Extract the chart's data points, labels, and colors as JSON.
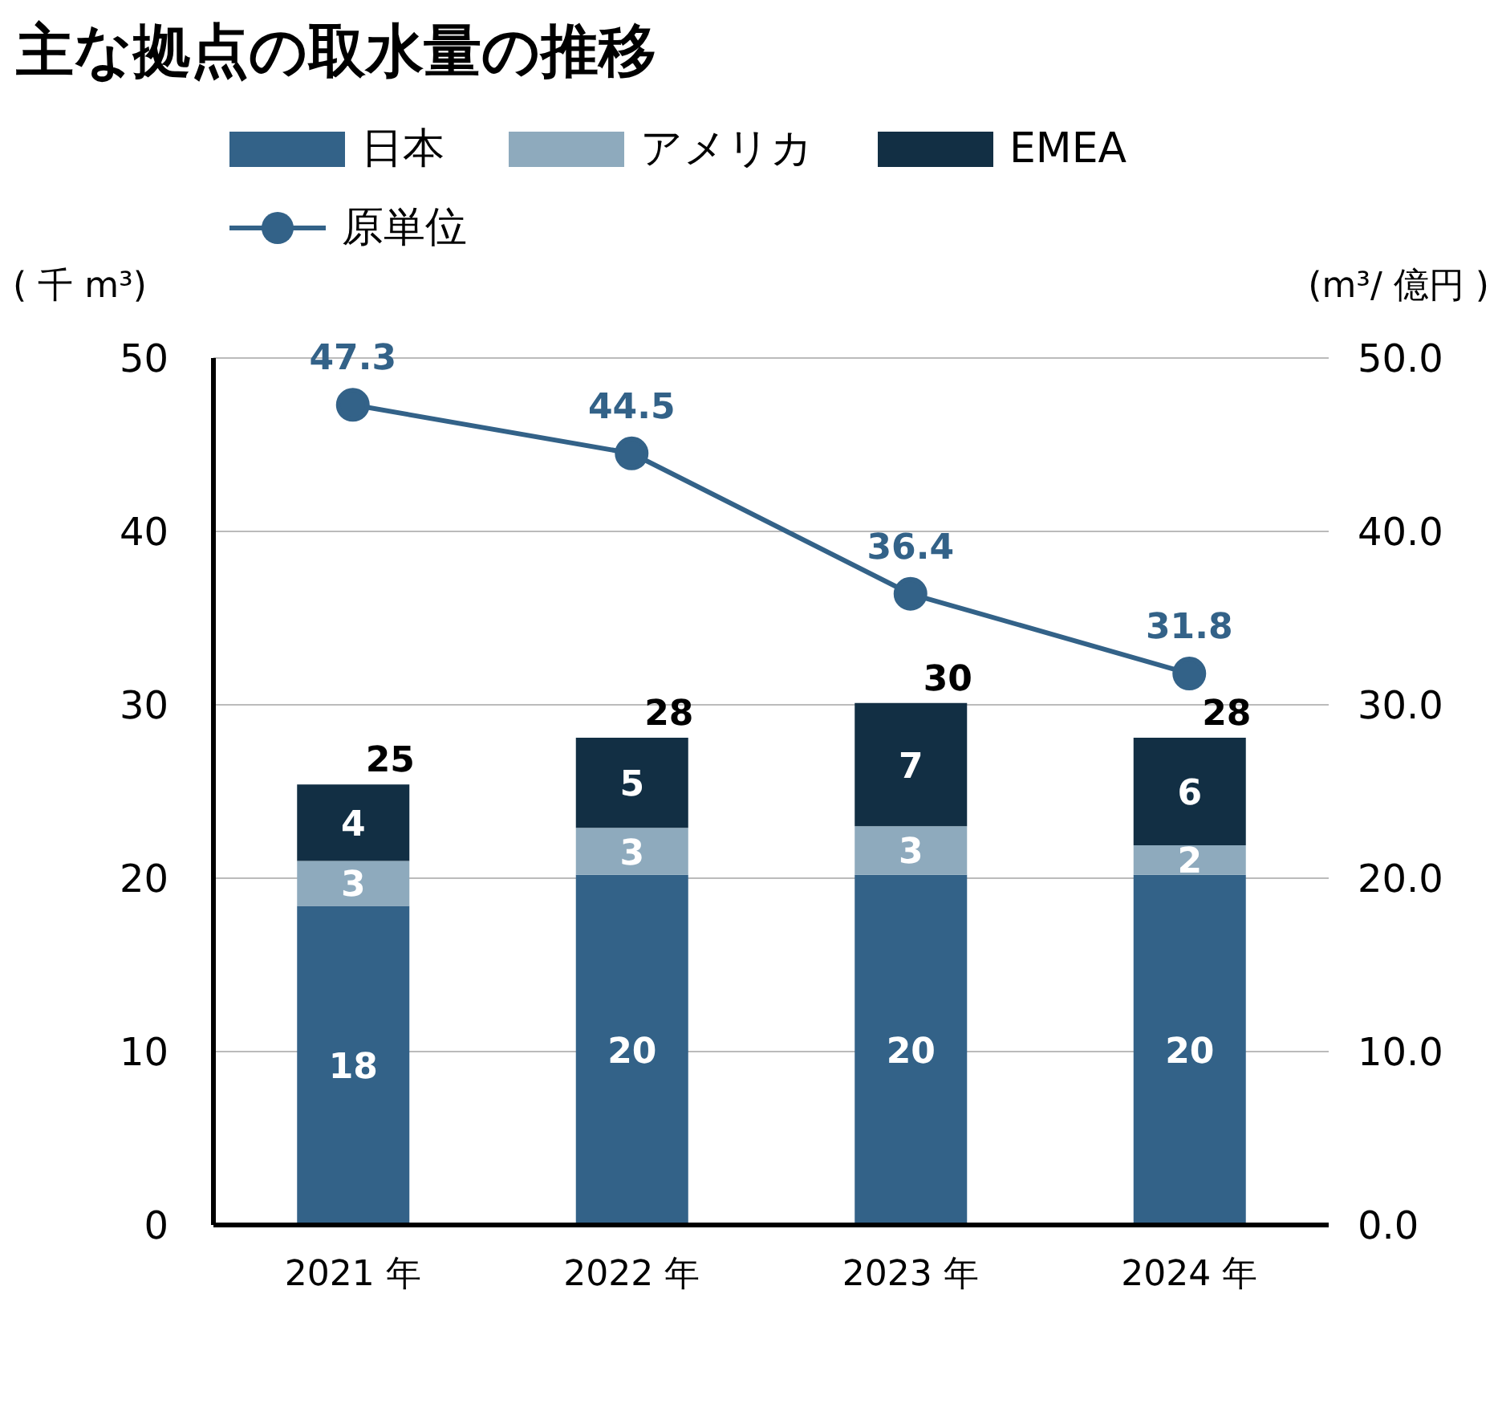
{
  "chart_data": {
    "type": "bar",
    "title": "主な拠点の取水量の推移",
    "ylabel": "( 千 m³)",
    "y2label": "(m³/ 億円 )",
    "categories": [
      "2021 年",
      "2022 年",
      "2023 年",
      "2024 年"
    ],
    "stacked": true,
    "grid": "y",
    "legend": "top",
    "marker": "circle",
    "ylim": [
      0,
      50
    ],
    "yticks": [
      0,
      10,
      20,
      30,
      40,
      50
    ],
    "y2lim": [
      0,
      50
    ],
    "y2ticks": [
      {
        "value": 0,
        "label": "0.0"
      },
      {
        "value": 10,
        "label": "10.0"
      },
      {
        "value": 20,
        "label": "20.0"
      },
      {
        "value": 30,
        "label": "30.0"
      },
      {
        "value": 40,
        "label": "40.0"
      },
      {
        "value": 50,
        "label": "50.0"
      }
    ],
    "series": [
      {
        "name": "日本",
        "color": "#336288",
        "values": [
          18.4,
          20.2,
          20.2,
          20.2
        ],
        "value_labels": [
          "18",
          "20",
          "20",
          "20"
        ]
      },
      {
        "name": "アメリカ",
        "color": "#8eaabd",
        "values": [
          2.6,
          2.7,
          2.8,
          1.7
        ],
        "value_labels": [
          "3",
          "3",
          "3",
          "2"
        ]
      },
      {
        "name": "EMEA",
        "color": "#122f44",
        "values": [
          4.4,
          5.2,
          7.1,
          6.2
        ],
        "value_labels": [
          "4",
          "5",
          "7",
          "6"
        ]
      },
      {
        "name": "原単位",
        "type": "line",
        "axis": "y2",
        "color": "#336288",
        "values": [
          47.3,
          44.5,
          36.4,
          31.8
        ],
        "value_labels": [
          "47.3",
          "44.5",
          "36.4",
          "31.8"
        ]
      }
    ],
    "totals": [
      "25",
      "28",
      "30",
      "28"
    ]
  }
}
